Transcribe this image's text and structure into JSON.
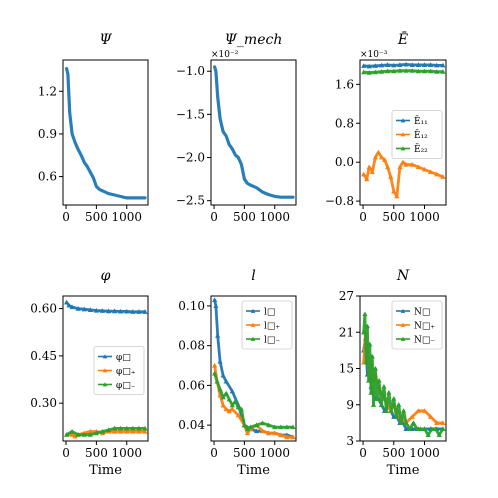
{
  "colors": {
    "blue": "#1f77b4",
    "orange": "#ff7f0e",
    "green": "#2ca02c"
  },
  "chart_data": [
    {
      "type": "line",
      "title": "Ψ",
      "xlabel": "",
      "xlim": [
        -50,
        1350
      ],
      "ylim": [
        0.4,
        1.42
      ],
      "xticks": [
        {
          "v": 0,
          "l": "0"
        },
        {
          "v": 500,
          "l": "500"
        },
        {
          "v": 1000,
          "l": "1000"
        }
      ],
      "yticks": [
        {
          "v": 0.6,
          "l": "0.6"
        },
        {
          "v": 0.9,
          "l": "0.9"
        },
        {
          "v": 1.2,
          "l": "1.2"
        }
      ],
      "exponent": "",
      "series": [
        {
          "color": "blue",
          "marker": false,
          "x": [
            10,
            30,
            60,
            100,
            150,
            200,
            250,
            300,
            350,
            400,
            450,
            500,
            550,
            600,
            700,
            800,
            900,
            1000,
            1100,
            1200,
            1300
          ],
          "y": [
            1.36,
            1.32,
            1.05,
            0.9,
            0.84,
            0.79,
            0.75,
            0.7,
            0.67,
            0.63,
            0.59,
            0.53,
            0.51,
            0.5,
            0.48,
            0.47,
            0.46,
            0.45,
            0.45,
            0.45,
            0.45
          ]
        }
      ]
    },
    {
      "type": "line",
      "title": "Ψ_mech",
      "xlabel": "",
      "xlim": [
        -50,
        1350
      ],
      "ylim": [
        -2.55,
        -0.87
      ],
      "xticks": [
        {
          "v": 0,
          "l": "0"
        },
        {
          "v": 500,
          "l": "500"
        },
        {
          "v": 1000,
          "l": "1000"
        }
      ],
      "yticks": [
        {
          "v": -1.0,
          "l": "−1.0"
        },
        {
          "v": -1.5,
          "l": "−1.5"
        },
        {
          "v": -2.0,
          "l": "−2.0"
        },
        {
          "v": -2.5,
          "l": "−2.5"
        }
      ],
      "exponent": "×10⁻²",
      "series": [
        {
          "color": "blue",
          "marker": false,
          "x": [
            10,
            30,
            60,
            100,
            150,
            200,
            250,
            300,
            350,
            400,
            450,
            500,
            550,
            600,
            700,
            800,
            900,
            1000,
            1100,
            1200,
            1300
          ],
          "y": [
            -0.95,
            -1.0,
            -1.3,
            -1.55,
            -1.7,
            -1.75,
            -1.85,
            -1.9,
            -1.97,
            -2.0,
            -2.08,
            -2.25,
            -2.3,
            -2.32,
            -2.35,
            -2.4,
            -2.43,
            -2.45,
            -2.46,
            -2.46,
            -2.46
          ]
        }
      ]
    },
    {
      "type": "line",
      "title": "Ē",
      "xlabel": "",
      "xlim": [
        -50,
        1350
      ],
      "ylim": [
        -0.88,
        2.1
      ],
      "xticks": [
        {
          "v": 0,
          "l": "0"
        },
        {
          "v": 500,
          "l": "500"
        },
        {
          "v": 1000,
          "l": "1000"
        }
      ],
      "yticks": [
        {
          "v": -0.8,
          "l": "−0.8"
        },
        {
          "v": 0.0,
          "l": "0.0"
        },
        {
          "v": 0.8,
          "l": "0.8"
        },
        {
          "v": 1.6,
          "l": "1.6"
        }
      ],
      "exponent": "×10⁻³",
      "legend": {
        "position": "center-right",
        "labels": [
          "Ē₁₁",
          "Ē₁₂",
          "Ē₂₂"
        ]
      },
      "series": [
        {
          "color": "blue",
          "marker": true,
          "x": [
            10,
            100,
            200,
            300,
            400,
            500,
            600,
            700,
            800,
            900,
            1000,
            1100,
            1200,
            1300
          ],
          "y": [
            1.98,
            1.97,
            1.98,
            1.99,
            2.0,
            1.99,
            2.0,
            2.01,
            2.0,
            2.0,
            2.0,
            2.0,
            1.99,
            1.99
          ]
        },
        {
          "color": "orange",
          "marker": true,
          "x": [
            10,
            60,
            100,
            150,
            200,
            250,
            300,
            350,
            400,
            450,
            500,
            550,
            600,
            650,
            700,
            800,
            900,
            1000,
            1100,
            1200,
            1300
          ],
          "y": [
            -0.25,
            -0.35,
            -0.1,
            -0.2,
            0.1,
            0.2,
            0.1,
            0.05,
            -0.1,
            -0.3,
            -0.6,
            -0.7,
            -0.1,
            0.0,
            -0.05,
            -0.05,
            -0.1,
            -0.15,
            -0.2,
            -0.25,
            -0.3
          ]
        },
        {
          "color": "green",
          "marker": true,
          "x": [
            10,
            100,
            200,
            300,
            400,
            500,
            600,
            700,
            800,
            900,
            1000,
            1100,
            1200,
            1300
          ],
          "y": [
            1.85,
            1.84,
            1.85,
            1.86,
            1.87,
            1.87,
            1.88,
            1.88,
            1.88,
            1.87,
            1.87,
            1.87,
            1.86,
            1.86
          ]
        }
      ]
    },
    {
      "type": "line",
      "title": "φ",
      "xlabel": "Time",
      "xlim": [
        -50,
        1350
      ],
      "ylim": [
        0.18,
        0.64
      ],
      "xticks": [
        {
          "v": 0,
          "l": "0"
        },
        {
          "v": 500,
          "l": "500"
        },
        {
          "v": 1000,
          "l": "1000"
        }
      ],
      "yticks": [
        {
          "v": 0.3,
          "l": "0.30"
        },
        {
          "v": 0.45,
          "l": "0.45"
        },
        {
          "v": 0.6,
          "l": "0.60"
        }
      ],
      "exponent": "",
      "legend": {
        "position": "center-right",
        "labels": [
          "φ□",
          "φ□₊",
          "φ□₋"
        ]
      },
      "series": [
        {
          "color": "blue",
          "marker": true,
          "x": [
            10,
            50,
            100,
            200,
            300,
            400,
            500,
            600,
            700,
            800,
            900,
            1000,
            1100,
            1200,
            1300
          ],
          "y": [
            0.62,
            0.61,
            0.605,
            0.6,
            0.598,
            0.596,
            0.594,
            0.593,
            0.592,
            0.592,
            0.591,
            0.591,
            0.59,
            0.59,
            0.59
          ]
        },
        {
          "color": "orange",
          "marker": true,
          "x": [
            10,
            100,
            150,
            200,
            300,
            400,
            500,
            600,
            700,
            800,
            900,
            1000,
            1100,
            1200,
            1300
          ],
          "y": [
            0.2,
            0.2,
            0.195,
            0.2,
            0.205,
            0.21,
            0.21,
            0.205,
            0.21,
            0.21,
            0.21,
            0.21,
            0.21,
            0.21,
            0.21
          ]
        },
        {
          "color": "green",
          "marker": true,
          "x": [
            10,
            100,
            200,
            300,
            400,
            500,
            600,
            700,
            800,
            900,
            1000,
            1100,
            1200,
            1300
          ],
          "y": [
            0.2,
            0.21,
            0.2,
            0.2,
            0.2,
            0.205,
            0.21,
            0.215,
            0.22,
            0.22,
            0.22,
            0.22,
            0.22,
            0.22
          ]
        }
      ]
    },
    {
      "type": "line",
      "title": "l",
      "xlabel": "Time",
      "xlim": [
        -50,
        1350
      ],
      "ylim": [
        0.032,
        0.105
      ],
      "xticks": [
        {
          "v": 0,
          "l": "0"
        },
        {
          "v": 500,
          "l": "500"
        },
        {
          "v": 1000,
          "l": "1000"
        }
      ],
      "yticks": [
        {
          "v": 0.04,
          "l": "0.04"
        },
        {
          "v": 0.06,
          "l": "0.06"
        },
        {
          "v": 0.08,
          "l": "0.08"
        },
        {
          "v": 0.1,
          "l": "0.10"
        }
      ],
      "exponent": "",
      "legend": {
        "position": "upper-right",
        "labels": [
          "l□",
          "l□₊",
          "l□₋"
        ]
      },
      "series": [
        {
          "color": "blue",
          "marker": true,
          "x": [
            10,
            30,
            60,
            100,
            150,
            200,
            300,
            400,
            500,
            600,
            700,
            800,
            900,
            1000,
            1100,
            1200,
            1300
          ],
          "y": [
            0.103,
            0.1,
            0.085,
            0.072,
            0.065,
            0.062,
            0.057,
            0.05,
            0.04,
            0.038,
            0.037,
            0.037,
            0.036,
            0.036,
            0.035,
            0.035,
            0.034
          ]
        },
        {
          "color": "orange",
          "marker": true,
          "x": [
            10,
            50,
            100,
            150,
            200,
            250,
            300,
            400,
            500,
            550,
            600,
            700,
            800,
            900,
            1000,
            1100,
            1200,
            1300
          ],
          "y": [
            0.07,
            0.062,
            0.055,
            0.05,
            0.048,
            0.047,
            0.048,
            0.045,
            0.04,
            0.036,
            0.038,
            0.04,
            0.037,
            0.036,
            0.036,
            0.035,
            0.034,
            0.034
          ]
        },
        {
          "color": "green",
          "marker": true,
          "x": [
            10,
            50,
            100,
            150,
            200,
            250,
            300,
            350,
            400,
            450,
            500,
            550,
            600,
            700,
            800,
            900,
            1000,
            1100,
            1200,
            1300
          ],
          "y": [
            0.066,
            0.062,
            0.058,
            0.054,
            0.056,
            0.053,
            0.05,
            0.052,
            0.049,
            0.048,
            0.04,
            0.038,
            0.039,
            0.04,
            0.041,
            0.04,
            0.039,
            0.039,
            0.039,
            0.039
          ]
        }
      ]
    },
    {
      "type": "line",
      "title": "N",
      "xlabel": "Time",
      "xlim": [
        -50,
        1350
      ],
      "ylim": [
        3,
        27
      ],
      "xticks": [
        {
          "v": 0,
          "l": "0"
        },
        {
          "v": 500,
          "l": "500"
        },
        {
          "v": 1000,
          "l": "1000"
        }
      ],
      "yticks": [
        {
          "v": 3,
          "l": "3"
        },
        {
          "v": 9,
          "l": "9"
        },
        {
          "v": 15,
          "l": "15"
        },
        {
          "v": 21,
          "l": "21"
        },
        {
          "v": 27,
          "l": "27"
        }
      ],
      "exponent": "",
      "legend": {
        "position": "upper-right",
        "labels": [
          "N□",
          "N□₊",
          "N□₋"
        ]
      },
      "series": [
        {
          "color": "blue",
          "marker": true,
          "x": [
            10,
            40,
            70,
            100,
            130,
            160,
            200,
            250,
            300,
            350,
            400,
            450,
            500,
            550,
            600,
            650,
            700,
            800,
            900,
            1000,
            1100,
            1200,
            1300
          ],
          "y": [
            18,
            20,
            14,
            16,
            12,
            11,
            10,
            10,
            9,
            8,
            9,
            8,
            7,
            7,
            6,
            6,
            5,
            5,
            5,
            5,
            5,
            5,
            5
          ]
        },
        {
          "color": "orange",
          "marker": true,
          "x": [
            10,
            40,
            70,
            100,
            130,
            160,
            200,
            250,
            300,
            350,
            400,
            450,
            500,
            600,
            700,
            800,
            900,
            1000,
            1100,
            1200,
            1300
          ],
          "y": [
            16,
            21,
            18,
            14,
            16,
            13,
            14,
            12,
            11,
            10,
            9,
            8,
            9,
            7,
            6,
            7,
            8,
            8,
            7,
            6,
            6
          ]
        },
        {
          "color": "green",
          "marker": true,
          "x": [
            10,
            30,
            50,
            70,
            90,
            110,
            130,
            150,
            170,
            200,
            230,
            260,
            300,
            340,
            380,
            420,
            460,
            500,
            540,
            580,
            620,
            660,
            700,
            760,
            820,
            880,
            940,
            1000,
            1060,
            1120,
            1180,
            1240,
            1300
          ],
          "y": [
            21,
            24,
            16,
            22,
            13,
            19,
            11,
            17,
            9,
            15,
            10,
            13,
            9,
            12,
            8,
            11,
            8,
            10,
            7,
            9,
            6,
            8,
            6,
            5,
            6,
            5,
            5,
            5,
            4,
            5,
            5,
            4,
            5
          ]
        }
      ]
    }
  ]
}
